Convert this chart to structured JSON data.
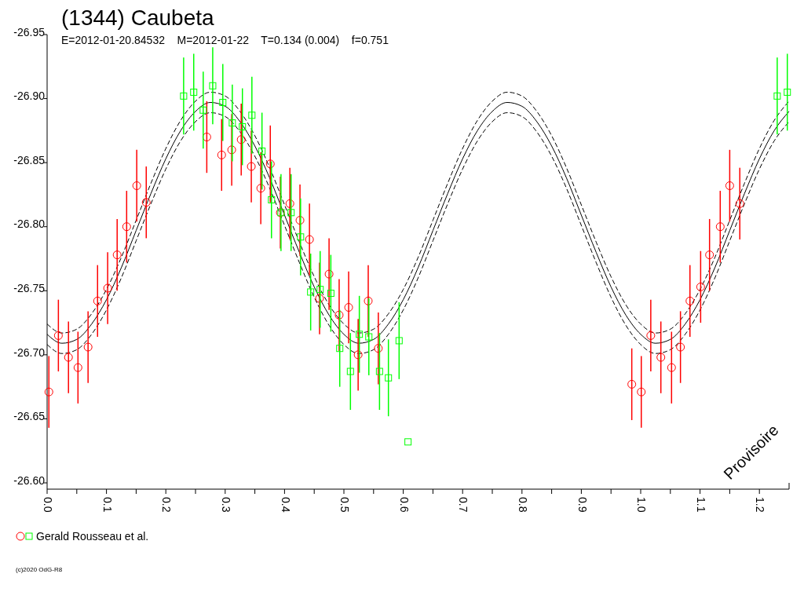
{
  "chart_data": {
    "type": "scatter",
    "title": "(1344) Caubeta",
    "subtitle": "E=2012-01-20.84532    M=2012-01-22    T=0.134 (0.004)    f=0.751",
    "xlim": [
      0,
      1.25
    ],
    "xticks": [
      {
        "value": 0,
        "label": "0.0"
      },
      {
        "value": 0.05,
        "label": null
      },
      0.1,
      {
        "value": 0.15,
        "label": null
      },
      0.2,
      {
        "value": 0.25,
        "label": null
      },
      0.3,
      {
        "value": 0.35,
        "label": null
      },
      0.4,
      {
        "value": 0.45,
        "label": null
      },
      0.5,
      {
        "value": 0.55,
        "label": null
      },
      0.6,
      {
        "value": 0.65,
        "label": null
      },
      0.7,
      {
        "value": 0.75,
        "label": null
      },
      0.8,
      {
        "value": 0.85,
        "label": null
      },
      0.9,
      {
        "value": 0.95,
        "label": null
      },
      {
        "value": 1,
        "label": "1.0"
      },
      {
        "value": 1.05,
        "label": null
      },
      1.1,
      {
        "value": 1.15,
        "label": null
      },
      1.2
    ],
    "ylim": [
      -26.6,
      -26.95
    ],
    "yticks": [
      {
        "value": -26.6,
        "label": "-26.60"
      },
      -26.65,
      {
        "value": -26.7,
        "label": "-26.70"
      },
      -26.75,
      {
        "value": -26.8,
        "label": "-26.80"
      },
      -26.85,
      {
        "value": -26.9,
        "label": "-26.90"
      },
      -26.95
    ],
    "grid": false,
    "legend": "bottom left",
    "annotations": [
      "Provisoire",
      "(c)2020 OdG-R8"
    ],
    "series": [
      {
        "type": "line",
        "color": "#000000",
        "marker": "none",
        "line_style": "solid",
        "x": [
          0,
          0.025,
          0.05,
          0.075,
          0.1,
          0.125,
          0.15,
          0.175,
          0.2,
          0.225,
          0.25,
          0.275,
          0.3,
          0.325,
          0.35,
          0.375,
          0.4,
          0.425,
          0.45,
          0.475,
          0.5,
          0.525,
          0.55,
          0.575,
          0.6,
          0.625,
          0.65,
          0.675,
          0.7,
          0.725,
          0.75,
          0.775,
          0.8,
          0.825,
          0.85,
          0.875,
          0.9,
          0.925,
          0.95,
          0.975,
          1,
          1.025,
          1.05,
          1.075,
          1.1,
          1.125,
          1.15,
          1.175,
          1.2,
          1.225,
          1.25
        ],
        "values": [
          -26.716,
          -26.709,
          -26.712,
          -26.724,
          -26.743,
          -26.768,
          -26.797,
          -26.826,
          -26.853,
          -26.875,
          -26.89,
          -26.897,
          -26.894,
          -26.882,
          -26.863,
          -26.838,
          -26.809,
          -26.78,
          -26.753,
          -26.731,
          -26.716,
          -26.709,
          -26.712,
          -26.724,
          -26.743,
          -26.768,
          -26.797,
          -26.826,
          -26.853,
          -26.875,
          -26.89,
          -26.897,
          -26.894,
          -26.882,
          -26.863,
          -26.838,
          -26.809,
          -26.78,
          -26.753,
          -26.731,
          -26.716,
          -26.709,
          -26.712,
          -26.724,
          -26.743,
          -26.768,
          -26.797,
          -26.826,
          -26.853,
          -26.875,
          -26.89
        ]
      },
      {
        "type": "line",
        "color": "#000000",
        "marker": "none",
        "line_style": "dashed",
        "x": [
          0,
          0.025,
          0.05,
          0.075,
          0.1,
          0.125,
          0.15,
          0.175,
          0.2,
          0.225,
          0.25,
          0.275,
          0.3,
          0.325,
          0.35,
          0.375,
          0.4,
          0.425,
          0.45,
          0.475,
          0.5,
          0.525,
          0.55,
          0.575,
          0.6,
          0.625,
          0.65,
          0.675,
          0.7,
          0.725,
          0.75,
          0.775,
          0.8,
          0.825,
          0.85,
          0.875,
          0.9,
          0.925,
          0.95,
          0.975,
          1,
          1.025,
          1.05,
          1.075,
          1.1,
          1.125,
          1.15,
          1.175,
          1.2,
          1.225,
          1.25
        ],
        "values": [
          -26.724,
          -26.717,
          -26.72,
          -26.732,
          -26.751,
          -26.776,
          -26.805,
          -26.834,
          -26.861,
          -26.883,
          -26.898,
          -26.905,
          -26.902,
          -26.89,
          -26.871,
          -26.846,
          -26.817,
          -26.788,
          -26.761,
          -26.739,
          -26.724,
          -26.717,
          -26.72,
          -26.732,
          -26.751,
          -26.776,
          -26.805,
          -26.834,
          -26.861,
          -26.883,
          -26.898,
          -26.905,
          -26.902,
          -26.89,
          -26.871,
          -26.846,
          -26.817,
          -26.788,
          -26.761,
          -26.739,
          -26.724,
          -26.717,
          -26.72,
          -26.732,
          -26.751,
          -26.776,
          -26.805,
          -26.834,
          -26.861,
          -26.883,
          -26.898
        ]
      },
      {
        "type": "line",
        "color": "#000000",
        "marker": "none",
        "line_style": "dashed",
        "x": [
          0,
          0.025,
          0.05,
          0.075,
          0.1,
          0.125,
          0.15,
          0.175,
          0.2,
          0.225,
          0.25,
          0.275,
          0.3,
          0.325,
          0.35,
          0.375,
          0.4,
          0.425,
          0.45,
          0.475,
          0.5,
          0.525,
          0.55,
          0.575,
          0.6,
          0.625,
          0.65,
          0.675,
          0.7,
          0.725,
          0.75,
          0.775,
          0.8,
          0.825,
          0.85,
          0.875,
          0.9,
          0.925,
          0.95,
          0.975,
          1,
          1.025,
          1.05,
          1.075,
          1.1,
          1.125,
          1.15,
          1.175,
          1.2,
          1.225,
          1.25
        ],
        "values": [
          -26.708,
          -26.701,
          -26.704,
          -26.716,
          -26.735,
          -26.76,
          -26.789,
          -26.818,
          -26.845,
          -26.867,
          -26.882,
          -26.889,
          -26.886,
          -26.874,
          -26.855,
          -26.83,
          -26.801,
          -26.772,
          -26.745,
          -26.723,
          -26.708,
          -26.701,
          -26.704,
          -26.716,
          -26.735,
          -26.76,
          -26.789,
          -26.818,
          -26.845,
          -26.867,
          -26.882,
          -26.889,
          -26.886,
          -26.874,
          -26.855,
          -26.83,
          -26.801,
          -26.772,
          -26.745,
          -26.723,
          -26.708,
          -26.701,
          -26.704,
          -26.716,
          -26.735,
          -26.76,
          -26.789,
          -26.818,
          -26.845,
          -26.867,
          -26.882
        ]
      },
      {
        "color": "#ff0000",
        "marker": "circle",
        "x": [
          0.003,
          0.019,
          0.036,
          0.052,
          0.069,
          0.085,
          0.102,
          0.118,
          0.134,
          0.151,
          0.167,
          0.269,
          0.294,
          0.311,
          0.327,
          0.344,
          0.36,
          0.376,
          0.393,
          0.409,
          0.426,
          0.442,
          0.459,
          0.475,
          0.492,
          0.508,
          0.524,
          0.541,
          0.558,
          0.985,
          1.001,
          1.017,
          1.034,
          1.052,
          1.067,
          1.083,
          1.101,
          1.116,
          1.134,
          1.15,
          1.167
        ],
        "values": [
          -26.671,
          -26.715,
          -26.698,
          -26.69,
          -26.706,
          -26.742,
          -26.752,
          -26.778,
          -26.8,
          -26.832,
          -26.819,
          -26.87,
          -26.856,
          -26.86,
          -26.868,
          -26.847,
          -26.83,
          -26.849,
          -26.811,
          -26.818,
          -26.805,
          -26.79,
          -26.744,
          -26.763,
          -26.731,
          -26.737,
          -26.7,
          -26.742,
          -26.705,
          -26.677,
          -26.671,
          -26.715,
          -26.698,
          -26.69,
          -26.706,
          -26.742,
          -26.753,
          -26.778,
          -26.8,
          -26.832,
          -26.818
        ],
        "errors": [
          0.028,
          0.028,
          0.028,
          0.028,
          0.028,
          0.028,
          0.028,
          0.028,
          0.028,
          0.028,
          0.028,
          0.028,
          0.028,
          0.028,
          0.028,
          0.028,
          0.028,
          0.03,
          0.028,
          0.028,
          0.028,
          0.028,
          0.028,
          0.028,
          0.028,
          0.028,
          0.028,
          0.028,
          0.028,
          0.028,
          0.028,
          0.028,
          0.028,
          0.028,
          0.028,
          0.028,
          0.028,
          0.028,
          0.028,
          0.028,
          0.028
        ]
      },
      {
        "name": "Gerald Rousseau et al.",
        "color": "#00ff00",
        "marker": "square",
        "x": [
          0.23,
          0.247,
          0.263,
          0.279,
          0.296,
          0.312,
          0.329,
          0.345,
          0.362,
          0.378,
          0.394,
          0.411,
          0.427,
          0.444,
          0.46,
          0.478,
          0.493,
          0.511,
          0.526,
          0.542,
          0.56,
          0.575,
          0.593,
          0.608,
          1.23,
          1.247
        ],
        "values": [
          -26.902,
          -26.905,
          -26.891,
          -26.91,
          -26.897,
          -26.881,
          -26.878,
          -26.887,
          -26.859,
          -26.821,
          -26.811,
          -26.811,
          -26.792,
          -26.749,
          -26.751,
          -26.748,
          -26.705,
          -26.687,
          -26.716,
          -26.714,
          -26.687,
          -26.682,
          -26.711,
          -26.632,
          -26.902,
          -26.905
        ],
        "errors": [
          0.03,
          0.03,
          0.03,
          0.03,
          0.03,
          0.03,
          0.03,
          0.03,
          0.03,
          0.03,
          0.03,
          0.03,
          0.03,
          0.03,
          0.03,
          0.03,
          0.03,
          0.03,
          0.03,
          0.03,
          0.03,
          0.03,
          0.03,
          null,
          0.03,
          0.03
        ]
      }
    ]
  }
}
